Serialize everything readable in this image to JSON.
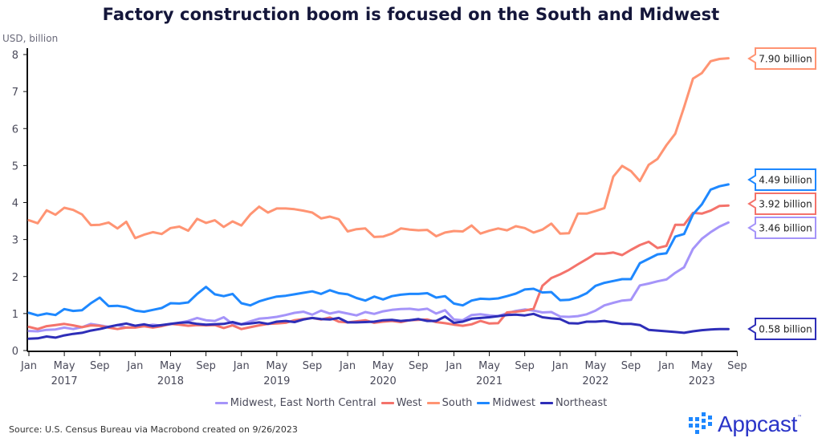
{
  "title": "Factory construction boom is focused on the South and Midwest",
  "source": "Source: U.S. Census Bureau via Macrobond created on 9/26/2023",
  "logo": {
    "text": "Appcast",
    "tm": "™",
    "icon": "grid-dots-icon",
    "color": "#2b35c8",
    "accent": "#1e88ff"
  },
  "chart_data": {
    "type": "line",
    "title": "Factory construction boom is focused on the South and Midwest",
    "ylabel": "USD, billion",
    "xlabel": "",
    "ylim": [
      0,
      8
    ],
    "yticks": [
      0,
      1,
      2,
      3,
      4,
      5,
      6,
      7,
      8
    ],
    "x_start": "2017-01",
    "x_end": "2023-08",
    "frequency": "monthly",
    "xticks": [
      "Jan",
      "May",
      "Sep",
      "Jan",
      "May",
      "Sep",
      "Jan",
      "May",
      "Sep",
      "Jan",
      "May",
      "Sep",
      "Jan",
      "May",
      "Sep",
      "Jan",
      "May",
      "Sep",
      "Jan",
      "May",
      "Sep"
    ],
    "xtick_months": [
      0,
      4,
      8,
      12,
      16,
      20,
      24,
      28,
      32,
      36,
      40,
      44,
      48,
      52,
      56,
      60,
      64,
      68,
      72,
      76,
      80
    ],
    "year_labels": [
      {
        "label": "2017",
        "center_month": 4
      },
      {
        "label": "2018",
        "center_month": 16
      },
      {
        "label": "2019",
        "center_month": 28
      },
      {
        "label": "2020",
        "center_month": 40
      },
      {
        "label": "2021",
        "center_month": 52
      },
      {
        "label": "2022",
        "center_month": 64
      },
      {
        "label": "2023",
        "center_month": 76
      }
    ],
    "grid": false,
    "legend": "bottom",
    "series": [
      {
        "name": "Midwest, East North Central",
        "color": "#a594f9",
        "last_label": "3.46 billion",
        "values": [
          0.53,
          0.52,
          0.56,
          0.57,
          0.62,
          0.58,
          0.63,
          0.72,
          0.68,
          0.64,
          0.69,
          0.62,
          0.63,
          0.66,
          0.7,
          0.67,
          0.71,
          0.75,
          0.8,
          0.88,
          0.82,
          0.8,
          0.9,
          0.72,
          0.71,
          0.79,
          0.86,
          0.88,
          0.91,
          0.96,
          1.02,
          1.05,
          0.97,
          1.08,
          1.0,
          1.05,
          1.0,
          0.95,
          1.04,
          0.99,
          1.06,
          1.1,
          1.12,
          1.13,
          1.1,
          1.13,
          1.0,
          1.09,
          0.84,
          0.82,
          0.96,
          0.98,
          0.95,
          0.93,
          1.01,
          1.07,
          1.11,
          1.08,
          1.03,
          1.04,
          0.92,
          0.91,
          0.93,
          0.98,
          1.08,
          1.22,
          1.29,
          1.35,
          1.37,
          1.76,
          1.81,
          1.87,
          1.92,
          2.1,
          2.25,
          2.75,
          3.02,
          3.2,
          3.35,
          3.46
        ]
      },
      {
        "name": "West",
        "color": "#f4736b",
        "last_label": "3.92 billion",
        "values": [
          0.64,
          0.58,
          0.66,
          0.69,
          0.72,
          0.68,
          0.63,
          0.68,
          0.67,
          0.62,
          0.58,
          0.62,
          0.62,
          0.66,
          0.62,
          0.66,
          0.72,
          0.7,
          0.67,
          0.69,
          0.68,
          0.69,
          0.61,
          0.68,
          0.58,
          0.63,
          0.68,
          0.72,
          0.73,
          0.75,
          0.82,
          0.85,
          0.88,
          0.84,
          0.89,
          0.78,
          0.76,
          0.79,
          0.82,
          0.75,
          0.78,
          0.8,
          0.77,
          0.82,
          0.83,
          0.84,
          0.77,
          0.74,
          0.7,
          0.67,
          0.71,
          0.8,
          0.73,
          0.74,
          1.03,
          1.05,
          1.08,
          1.13,
          1.75,
          1.96,
          2.06,
          2.18,
          2.33,
          2.47,
          2.62,
          2.62,
          2.65,
          2.58,
          2.72,
          2.85,
          2.94,
          2.77,
          2.83,
          3.4,
          3.4,
          3.72,
          3.7,
          3.78,
          3.91,
          3.92
        ]
      },
      {
        "name": "South",
        "color": "#ff9473",
        "last_label": "7.90 billion",
        "values": [
          3.52,
          3.44,
          3.79,
          3.67,
          3.86,
          3.8,
          3.68,
          3.39,
          3.4,
          3.46,
          3.3,
          3.48,
          3.04,
          3.13,
          3.2,
          3.15,
          3.31,
          3.35,
          3.24,
          3.56,
          3.45,
          3.52,
          3.34,
          3.49,
          3.38,
          3.68,
          3.89,
          3.73,
          3.84,
          3.84,
          3.82,
          3.78,
          3.73,
          3.57,
          3.62,
          3.55,
          3.22,
          3.28,
          3.3,
          3.07,
          3.08,
          3.16,
          3.3,
          3.27,
          3.25,
          3.26,
          3.09,
          3.19,
          3.23,
          3.22,
          3.38,
          3.16,
          3.24,
          3.3,
          3.25,
          3.36,
          3.31,
          3.19,
          3.27,
          3.43,
          3.16,
          3.17,
          3.7,
          3.7,
          3.77,
          3.85,
          4.7,
          4.99,
          4.85,
          4.58,
          5.02,
          5.18,
          5.55,
          5.86,
          6.58,
          7.35,
          7.5,
          7.82,
          7.88,
          7.9
        ]
      },
      {
        "name": "Midwest",
        "color": "#1e88ff",
        "last_label": "4.49 billion",
        "values": [
          1.02,
          0.95,
          1.0,
          0.96,
          1.12,
          1.07,
          1.09,
          1.28,
          1.43,
          1.2,
          1.21,
          1.17,
          1.08,
          1.05,
          1.1,
          1.15,
          1.28,
          1.27,
          1.3,
          1.53,
          1.72,
          1.52,
          1.47,
          1.53,
          1.28,
          1.22,
          1.33,
          1.4,
          1.46,
          1.48,
          1.52,
          1.56,
          1.6,
          1.53,
          1.63,
          1.55,
          1.52,
          1.42,
          1.35,
          1.46,
          1.38,
          1.47,
          1.51,
          1.53,
          1.53,
          1.55,
          1.43,
          1.47,
          1.27,
          1.22,
          1.35,
          1.4,
          1.39,
          1.41,
          1.47,
          1.54,
          1.65,
          1.67,
          1.57,
          1.58,
          1.36,
          1.37,
          1.44,
          1.55,
          1.75,
          1.83,
          1.88,
          1.93,
          1.93,
          2.36,
          2.48,
          2.6,
          2.63,
          3.08,
          3.15,
          3.68,
          3.95,
          4.35,
          4.44,
          4.49
        ]
      },
      {
        "name": "Northeast",
        "color": "#2e2eb8",
        "last_label": "0.58 billion",
        "values": [
          0.32,
          0.33,
          0.38,
          0.35,
          0.41,
          0.45,
          0.48,
          0.54,
          0.58,
          0.64,
          0.69,
          0.73,
          0.67,
          0.71,
          0.66,
          0.69,
          0.72,
          0.75,
          0.76,
          0.72,
          0.7,
          0.71,
          0.72,
          0.77,
          0.71,
          0.73,
          0.76,
          0.72,
          0.78,
          0.8,
          0.77,
          0.84,
          0.88,
          0.85,
          0.84,
          0.88,
          0.76,
          0.76,
          0.77,
          0.78,
          0.82,
          0.83,
          0.8,
          0.82,
          0.85,
          0.8,
          0.8,
          0.92,
          0.75,
          0.78,
          0.86,
          0.88,
          0.9,
          0.93,
          0.96,
          0.97,
          0.95,
          0.99,
          0.9,
          0.87,
          0.85,
          0.74,
          0.73,
          0.78,
          0.78,
          0.8,
          0.76,
          0.72,
          0.72,
          0.69,
          0.56,
          0.54,
          0.52,
          0.5,
          0.48,
          0.52,
          0.55,
          0.57,
          0.58,
          0.58
        ]
      }
    ],
    "callouts": [
      {
        "series": "South",
        "label": "7.90 billion",
        "value": 7.9,
        "color": "#ff9473"
      },
      {
        "series": "Midwest",
        "label": "4.49 billion",
        "value": 4.49,
        "color": "#1e88ff"
      },
      {
        "series": "West",
        "label": "3.92 billion",
        "value": 3.92,
        "color": "#f4736b"
      },
      {
        "series": "Midwest, East North Central",
        "label": "3.46 billion",
        "value": 3.46,
        "color": "#a594f9"
      },
      {
        "series": "Northeast",
        "label": "0.58 billion",
        "value": 0.58,
        "color": "#2e2eb8"
      }
    ]
  }
}
